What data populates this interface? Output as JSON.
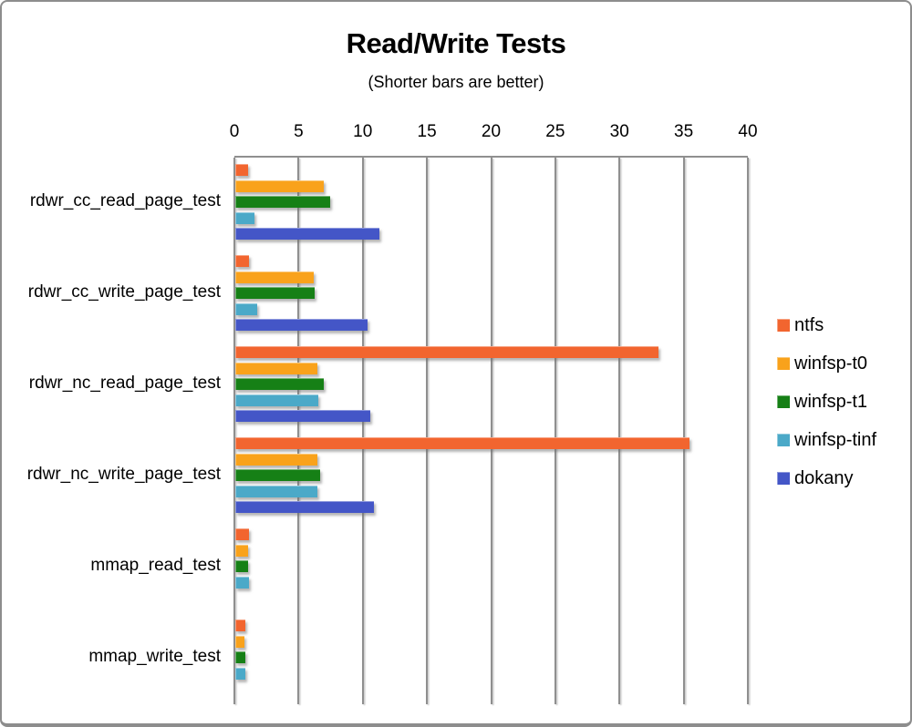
{
  "window": {
    "background": "#ffffff",
    "border_color": "#8d8d8d"
  },
  "chart_data": {
    "type": "bar",
    "orientation": "horizontal",
    "title": "Read/Write Tests",
    "subtitle": "(Shorter bars are better)",
    "xlim": [
      0,
      40
    ],
    "axis_ticks": [
      0,
      5,
      10,
      15,
      20,
      25,
      30,
      35,
      40
    ],
    "grid": true,
    "legend_position": "right",
    "categories": [
      "rdwr_cc_read_page_test",
      "rdwr_cc_write_page_test",
      "rdwr_nc_read_page_test",
      "rdwr_nc_write_page_test",
      "mmap_read_test",
      "mmap_write_test"
    ],
    "series": [
      {
        "name": "ntfs",
        "color": "#F2652F",
        "values": [
          1.0,
          1.1,
          33.0,
          35.4,
          1.1,
          0.8
        ]
      },
      {
        "name": "winfsp-t0",
        "color": "#F9A21B",
        "values": [
          6.9,
          6.1,
          6.4,
          6.4,
          1.0,
          0.7
        ]
      },
      {
        "name": "winfsp-t1",
        "color": "#168016",
        "values": [
          7.4,
          6.2,
          6.9,
          6.6,
          1.0,
          0.8
        ]
      },
      {
        "name": "winfsp-tinf",
        "color": "#4BA9C8",
        "values": [
          1.5,
          1.7,
          6.5,
          6.4,
          1.1,
          0.8
        ]
      },
      {
        "name": "dokany",
        "color": "#4456C7",
        "values": [
          11.2,
          10.3,
          10.5,
          10.8,
          null,
          null
        ]
      }
    ]
  }
}
